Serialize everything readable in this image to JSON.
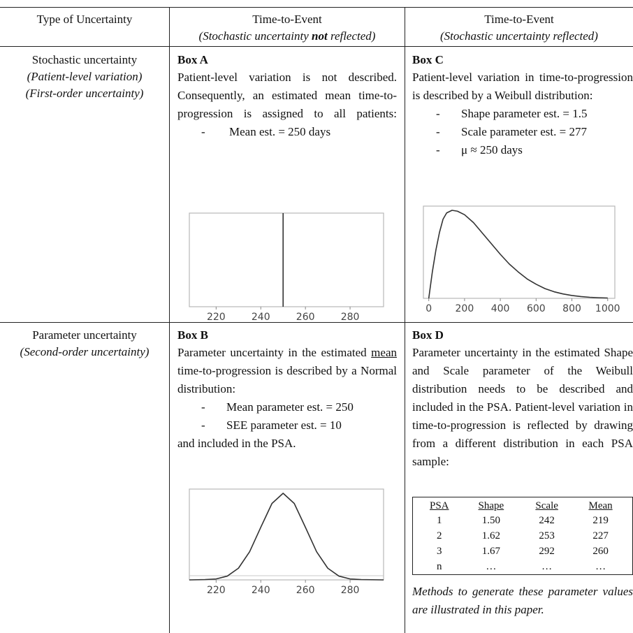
{
  "header": {
    "col1": "Type of Uncertainty",
    "col2_line1": "Time-to-Event",
    "col2_line2_a": "(Stochastic uncertainty ",
    "col2_line2_b": "not",
    "col2_line2_c": " reflected)",
    "col3_line1": "Time-to-Event",
    "col3_line2": "(Stochastic uncertainty reflected)"
  },
  "rows": {
    "stochastic": {
      "title": "Stochastic uncertainty",
      "sub1": "(Patient-level variation)",
      "sub2": "(First-order uncertainty)"
    },
    "parameter": {
      "title": "Parameter uncertainty",
      "sub1": "(Second-order uncertainty)"
    }
  },
  "boxA": {
    "title": "Box A",
    "text": "Patient-level variation is not described. Consequently, an estimated mean time-to-progression is assigned to all patients:",
    "bullets": [
      "Mean est. = 250 days"
    ]
  },
  "boxC": {
    "title": "Box C",
    "text": "Patient-level variation in time-to-progression is described by a Weibull distribution:",
    "bullets": [
      "Shape parameter est. = 1.5",
      "Scale parameter est. = 277",
      "μ ≈ 250 days"
    ]
  },
  "boxB": {
    "title": "Box B",
    "text_a": "Parameter uncertainty in the estimated ",
    "text_u": "mean",
    "text_b": " time-to-progression is described by a Normal distribution:",
    "bullets": [
      "Mean parameter est. = 250",
      "SEE parameter est. = 10"
    ],
    "after": "and included in the PSA."
  },
  "boxD": {
    "title": "Box D",
    "text": "Parameter uncertainty in the estimated Shape and Scale parameter of the Weibull distribution needs to be described and included in the PSA. Patient-level variation in time-to-progression is reflected by drawing from a different distribution in each PSA sample:",
    "table": {
      "headers": [
        "PSA",
        "Shape",
        "Scale",
        "Mean"
      ],
      "rows": [
        [
          "1",
          "1.50",
          "242",
          "219"
        ],
        [
          "2",
          "1.62",
          "253",
          "227"
        ],
        [
          "3",
          "1.67",
          "292",
          "260"
        ],
        [
          "n",
          "…",
          "…",
          "…"
        ]
      ]
    },
    "note": "Methods to generate these parameter values are illustrated in this paper."
  },
  "chart_data": [
    {
      "type": "line",
      "title": "",
      "xlabel": "",
      "ylabel": "",
      "xlim": [
        208,
        295
      ],
      "xticks": [
        220,
        240,
        260,
        280
      ],
      "series": [
        {
          "x": [
            250,
            250
          ],
          "y": [
            0,
            1
          ]
        }
      ]
    },
    {
      "type": "line",
      "title": "",
      "xlabel": "",
      "ylabel": "",
      "xlim": [
        -30,
        1040
      ],
      "xticks": [
        0,
        200,
        400,
        600,
        800,
        1000
      ],
      "series": [
        {
          "x": [
            0,
            20,
            40,
            60,
            80,
            100,
            130,
            160,
            200,
            250,
            300,
            350,
            400,
            450,
            500,
            550,
            600,
            650,
            700,
            750,
            800,
            850,
            900,
            950,
            1000
          ],
          "y": [
            0.0,
            0.3,
            0.55,
            0.75,
            0.9,
            0.97,
            1.0,
            0.99,
            0.95,
            0.86,
            0.74,
            0.62,
            0.5,
            0.39,
            0.3,
            0.22,
            0.16,
            0.11,
            0.075,
            0.05,
            0.032,
            0.02,
            0.012,
            0.007,
            0.004
          ]
        }
      ]
    },
    {
      "type": "line",
      "title": "",
      "xlabel": "",
      "ylabel": "",
      "xlim": [
        208,
        295
      ],
      "xticks": [
        220,
        240,
        260,
        280
      ],
      "series": [
        {
          "x": [
            208,
            215,
            220,
            225,
            230,
            235,
            240,
            245,
            250,
            255,
            260,
            265,
            270,
            275,
            280,
            285,
            295
          ],
          "y": [
            0.0,
            0.004,
            0.011,
            0.044,
            0.135,
            0.325,
            0.607,
            0.882,
            1.0,
            0.882,
            0.607,
            0.325,
            0.135,
            0.044,
            0.011,
            0.004,
            0.0
          ]
        }
      ]
    }
  ]
}
